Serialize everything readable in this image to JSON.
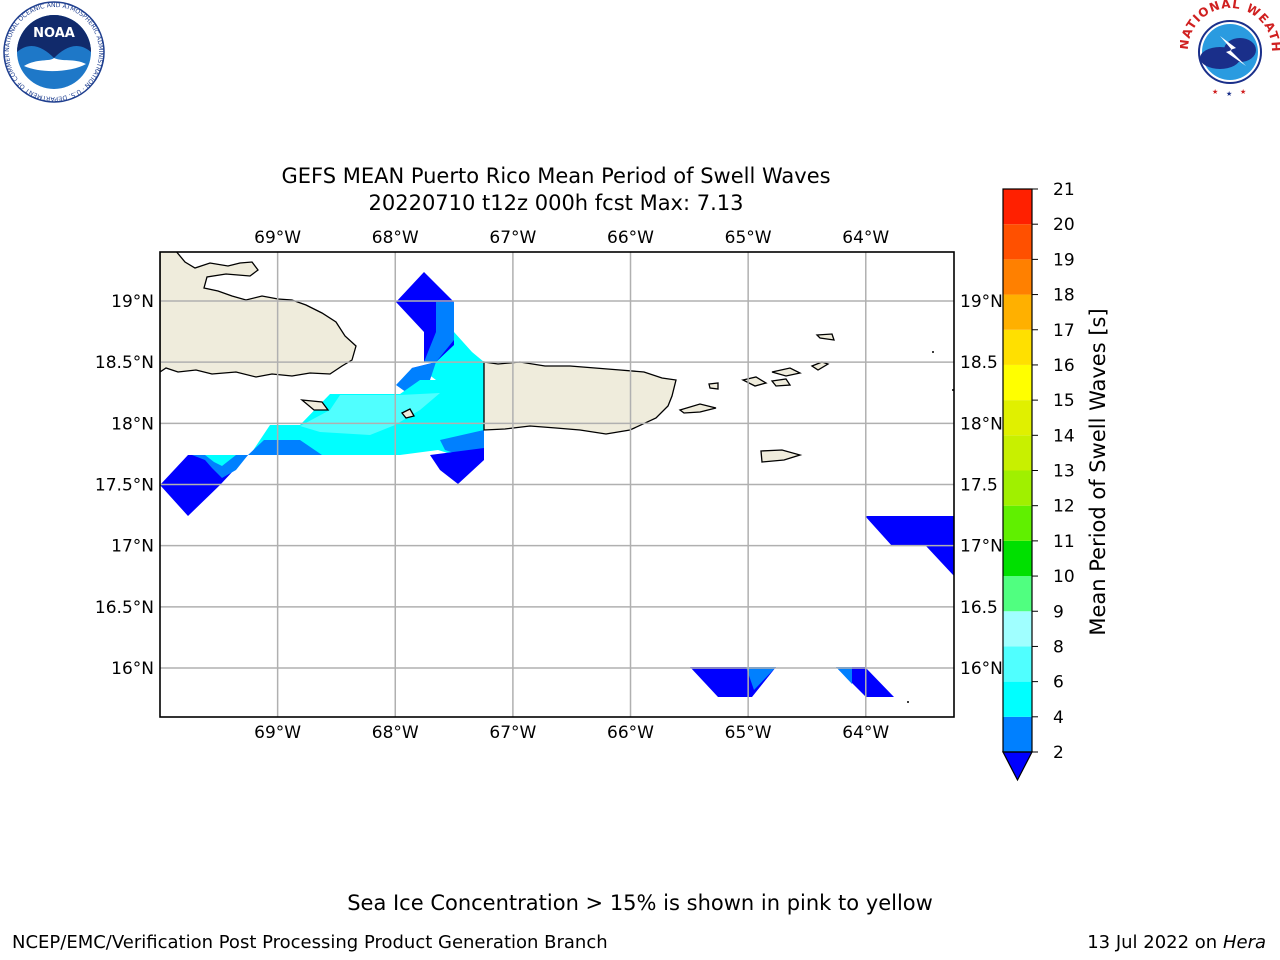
{
  "title": {
    "line1": "GEFS MEAN Puerto Rico Mean Period of Swell Waves",
    "line2": "20220710 t12z 000h fcst   Max: 7.13"
  },
  "map": {
    "lon_range": [
      -70.0,
      -63.25
    ],
    "lat_range": [
      15.6,
      19.4
    ],
    "lon_ticks": [
      {
        "value": -69,
        "label": "69°W"
      },
      {
        "value": -68,
        "label": "68°W"
      },
      {
        "value": -67,
        "label": "67°W"
      },
      {
        "value": -66,
        "label": "66°W"
      },
      {
        "value": -65,
        "label": "65°W"
      },
      {
        "value": -64,
        "label": "64°W"
      }
    ],
    "lat_ticks_left": [
      {
        "value": 19.0,
        "label": "19°N"
      },
      {
        "value": 18.5,
        "label": "18.5°N"
      },
      {
        "value": 18.0,
        "label": "18°N"
      },
      {
        "value": 17.5,
        "label": "17.5°N"
      },
      {
        "value": 17.0,
        "label": "17°N"
      },
      {
        "value": 16.5,
        "label": "16.5°N"
      },
      {
        "value": 16.0,
        "label": "16°N"
      }
    ],
    "lat_ticks_right": [
      {
        "value": 19.0,
        "label": "19°N"
      },
      {
        "value": 18.5,
        "label": "18.5"
      },
      {
        "value": 18.0,
        "label": "18°N"
      },
      {
        "value": 17.5,
        "label": "17.5"
      },
      {
        "value": 17.0,
        "label": "17°N"
      },
      {
        "value": 16.5,
        "label": "16.5"
      },
      {
        "value": 16.0,
        "label": "16°N"
      }
    ],
    "grid": true,
    "land_color": "#efecdc",
    "colors": {
      "band_2_4": "#0080ff",
      "band_4_6": "#00ffff",
      "band_6_8": "#50ffff",
      "below_2": "#0000ff"
    }
  },
  "colorbar": {
    "label": "Mean Period of Swell Waves [s]",
    "levels": [
      2,
      4,
      6,
      8,
      9,
      10,
      11,
      12,
      13,
      14,
      15,
      16,
      17,
      18,
      19,
      20,
      21
    ],
    "colors": [
      "#0080ff",
      "#00ffff",
      "#50ffff",
      "#a0ffff",
      "#50ff80",
      "#00e000",
      "#60f000",
      "#a0f000",
      "#c8f000",
      "#e0f000",
      "#ffff00",
      "#ffe000",
      "#ffb000",
      "#ff8000",
      "#ff5000",
      "#ff2000",
      "#ff0000"
    ],
    "under_color": "#0000ff",
    "extend": "min"
  },
  "logos": {
    "noaa": {
      "text": "NOAA",
      "ring_text": "NATIONAL OCEANIC AND ATMOSPHERIC ADMINISTRATION · U.S. DEPARTMENT OF COMMERCE"
    },
    "nws": {
      "ring_text": "NATIONAL WEATHER SERVICE"
    }
  },
  "footer": {
    "sea_ice_note": "Sea Ice Concentration > 15% is shown in pink to yellow",
    "credit": "NCEP/EMC/Verification Post Processing Product Generation Branch",
    "date": "13 Jul 2022 on",
    "machine": "Hera"
  }
}
